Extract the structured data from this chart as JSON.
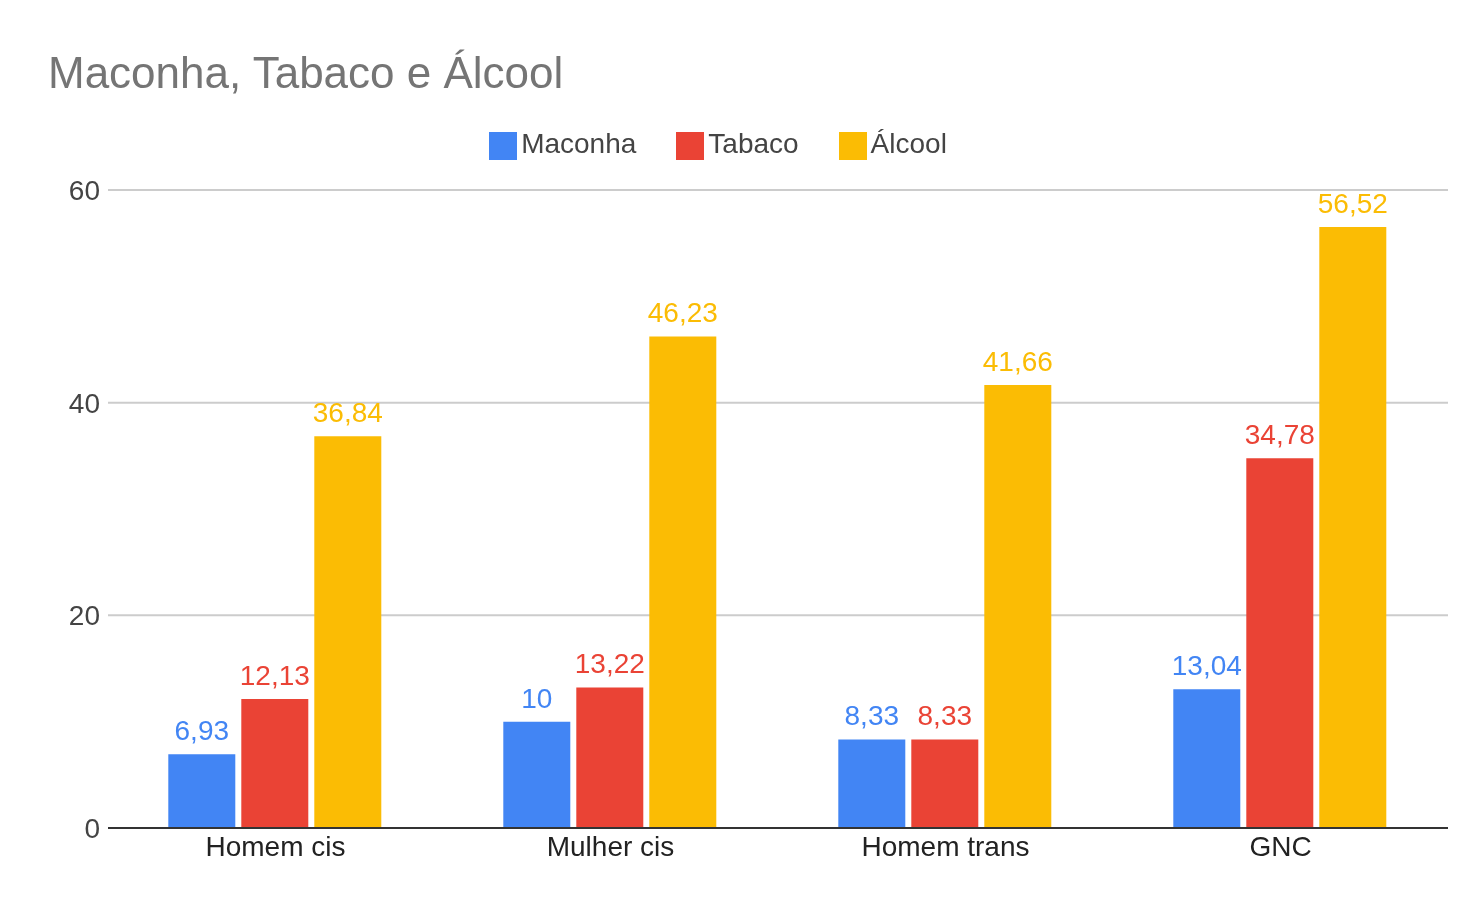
{
  "chart_data": {
    "type": "bar",
    "title": "Maconha, Tabaco e Álcool",
    "categories": [
      "Homem cis",
      "Mulher cis",
      "Homem trans",
      "GNC"
    ],
    "series": [
      {
        "name": "Maconha",
        "color": "#4285f4",
        "values": [
          6.93,
          10,
          8.33,
          13.04
        ],
        "value_labels": [
          "6,93",
          "10",
          "8,33",
          "13,04"
        ]
      },
      {
        "name": "Tabaco",
        "color": "#ea4335",
        "values": [
          12.13,
          13.22,
          8.33,
          34.78
        ],
        "value_labels": [
          "12,13",
          "13,22",
          "8,33",
          "34,78"
        ]
      },
      {
        "name": "Álcool",
        "color": "#fbbc04",
        "values": [
          36.84,
          46.23,
          41.66,
          56.52
        ],
        "value_labels": [
          "36,84",
          "46,23",
          "41,66",
          "56,52"
        ]
      }
    ],
    "ylim": [
      0,
      60
    ],
    "yticks": [
      0,
      20,
      40,
      60
    ],
    "grid": "y",
    "legend": "top"
  }
}
